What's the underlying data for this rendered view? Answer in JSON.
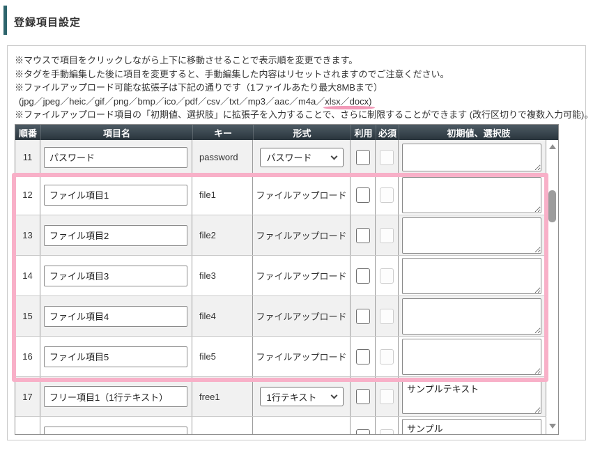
{
  "page": {
    "title": "登録項目設定"
  },
  "notes": {
    "line1": "※マウスで項目をクリックしながら上下に移動させることで表示順を変更できます。",
    "line2": "※タグを手動編集した後に項目を変更すると、手動編集した内容はリセットされますのでご注意ください。",
    "line3": "※ファイルアップロード可能な拡張子は下記の通りです（1ファイルあたり最大8MBまで）",
    "line4_prefix": "(jpg／jpeg／heic／gif／png／bmp／ico／pdf／csv／txt／mp3／aac／m4a／",
    "line4_underlined": "xlsx／docx)",
    "line5": "※ファイルアップロード項目の「初期値、選択肢」に拡張子を入力することで、さらに制限することができます (改行区切りで複数入力可能)。"
  },
  "table": {
    "headers": [
      "順番",
      "項目名",
      "キー",
      "形式",
      "利用",
      "必須",
      "初期値、選択肢"
    ],
    "rows": [
      {
        "no": "11",
        "name": "パスワード",
        "key": "password",
        "format": "パスワード",
        "format_control": "select",
        "use_checked": false,
        "required_checked": false,
        "initial": ""
      },
      {
        "no": "12",
        "name": "ファイル項目1",
        "key": "file1",
        "format": "ファイルアップロード",
        "format_control": "text",
        "use_checked": false,
        "required_checked": false,
        "initial": ""
      },
      {
        "no": "13",
        "name": "ファイル項目2",
        "key": "file2",
        "format": "ファイルアップロード",
        "format_control": "text",
        "use_checked": false,
        "required_checked": false,
        "initial": ""
      },
      {
        "no": "14",
        "name": "ファイル項目3",
        "key": "file3",
        "format": "ファイルアップロード",
        "format_control": "text",
        "use_checked": false,
        "required_checked": false,
        "initial": ""
      },
      {
        "no": "15",
        "name": "ファイル項目4",
        "key": "file4",
        "format": "ファイルアップロード",
        "format_control": "text",
        "use_checked": false,
        "required_checked": false,
        "initial": ""
      },
      {
        "no": "16",
        "name": "ファイル項目5",
        "key": "file5",
        "format": "ファイルアップロード",
        "format_control": "text",
        "use_checked": false,
        "required_checked": false,
        "initial": ""
      },
      {
        "no": "17",
        "name": "フリー項目1（1行テキスト）",
        "key": "free1",
        "format": "1行テキスト",
        "format_control": "select",
        "use_checked": false,
        "required_checked": false,
        "initial": "サンプルテキスト"
      },
      {
        "no": "",
        "name": "",
        "key": "",
        "format": "",
        "format_control": "text",
        "use_checked": false,
        "required_checked": false,
        "initial": "サンプル"
      }
    ]
  },
  "colors": {
    "accent_teal": "#2d646c",
    "header_dark": "#35424b",
    "highlight_pink": "#f8b0c8",
    "underline_pink": "#f29ab8"
  }
}
